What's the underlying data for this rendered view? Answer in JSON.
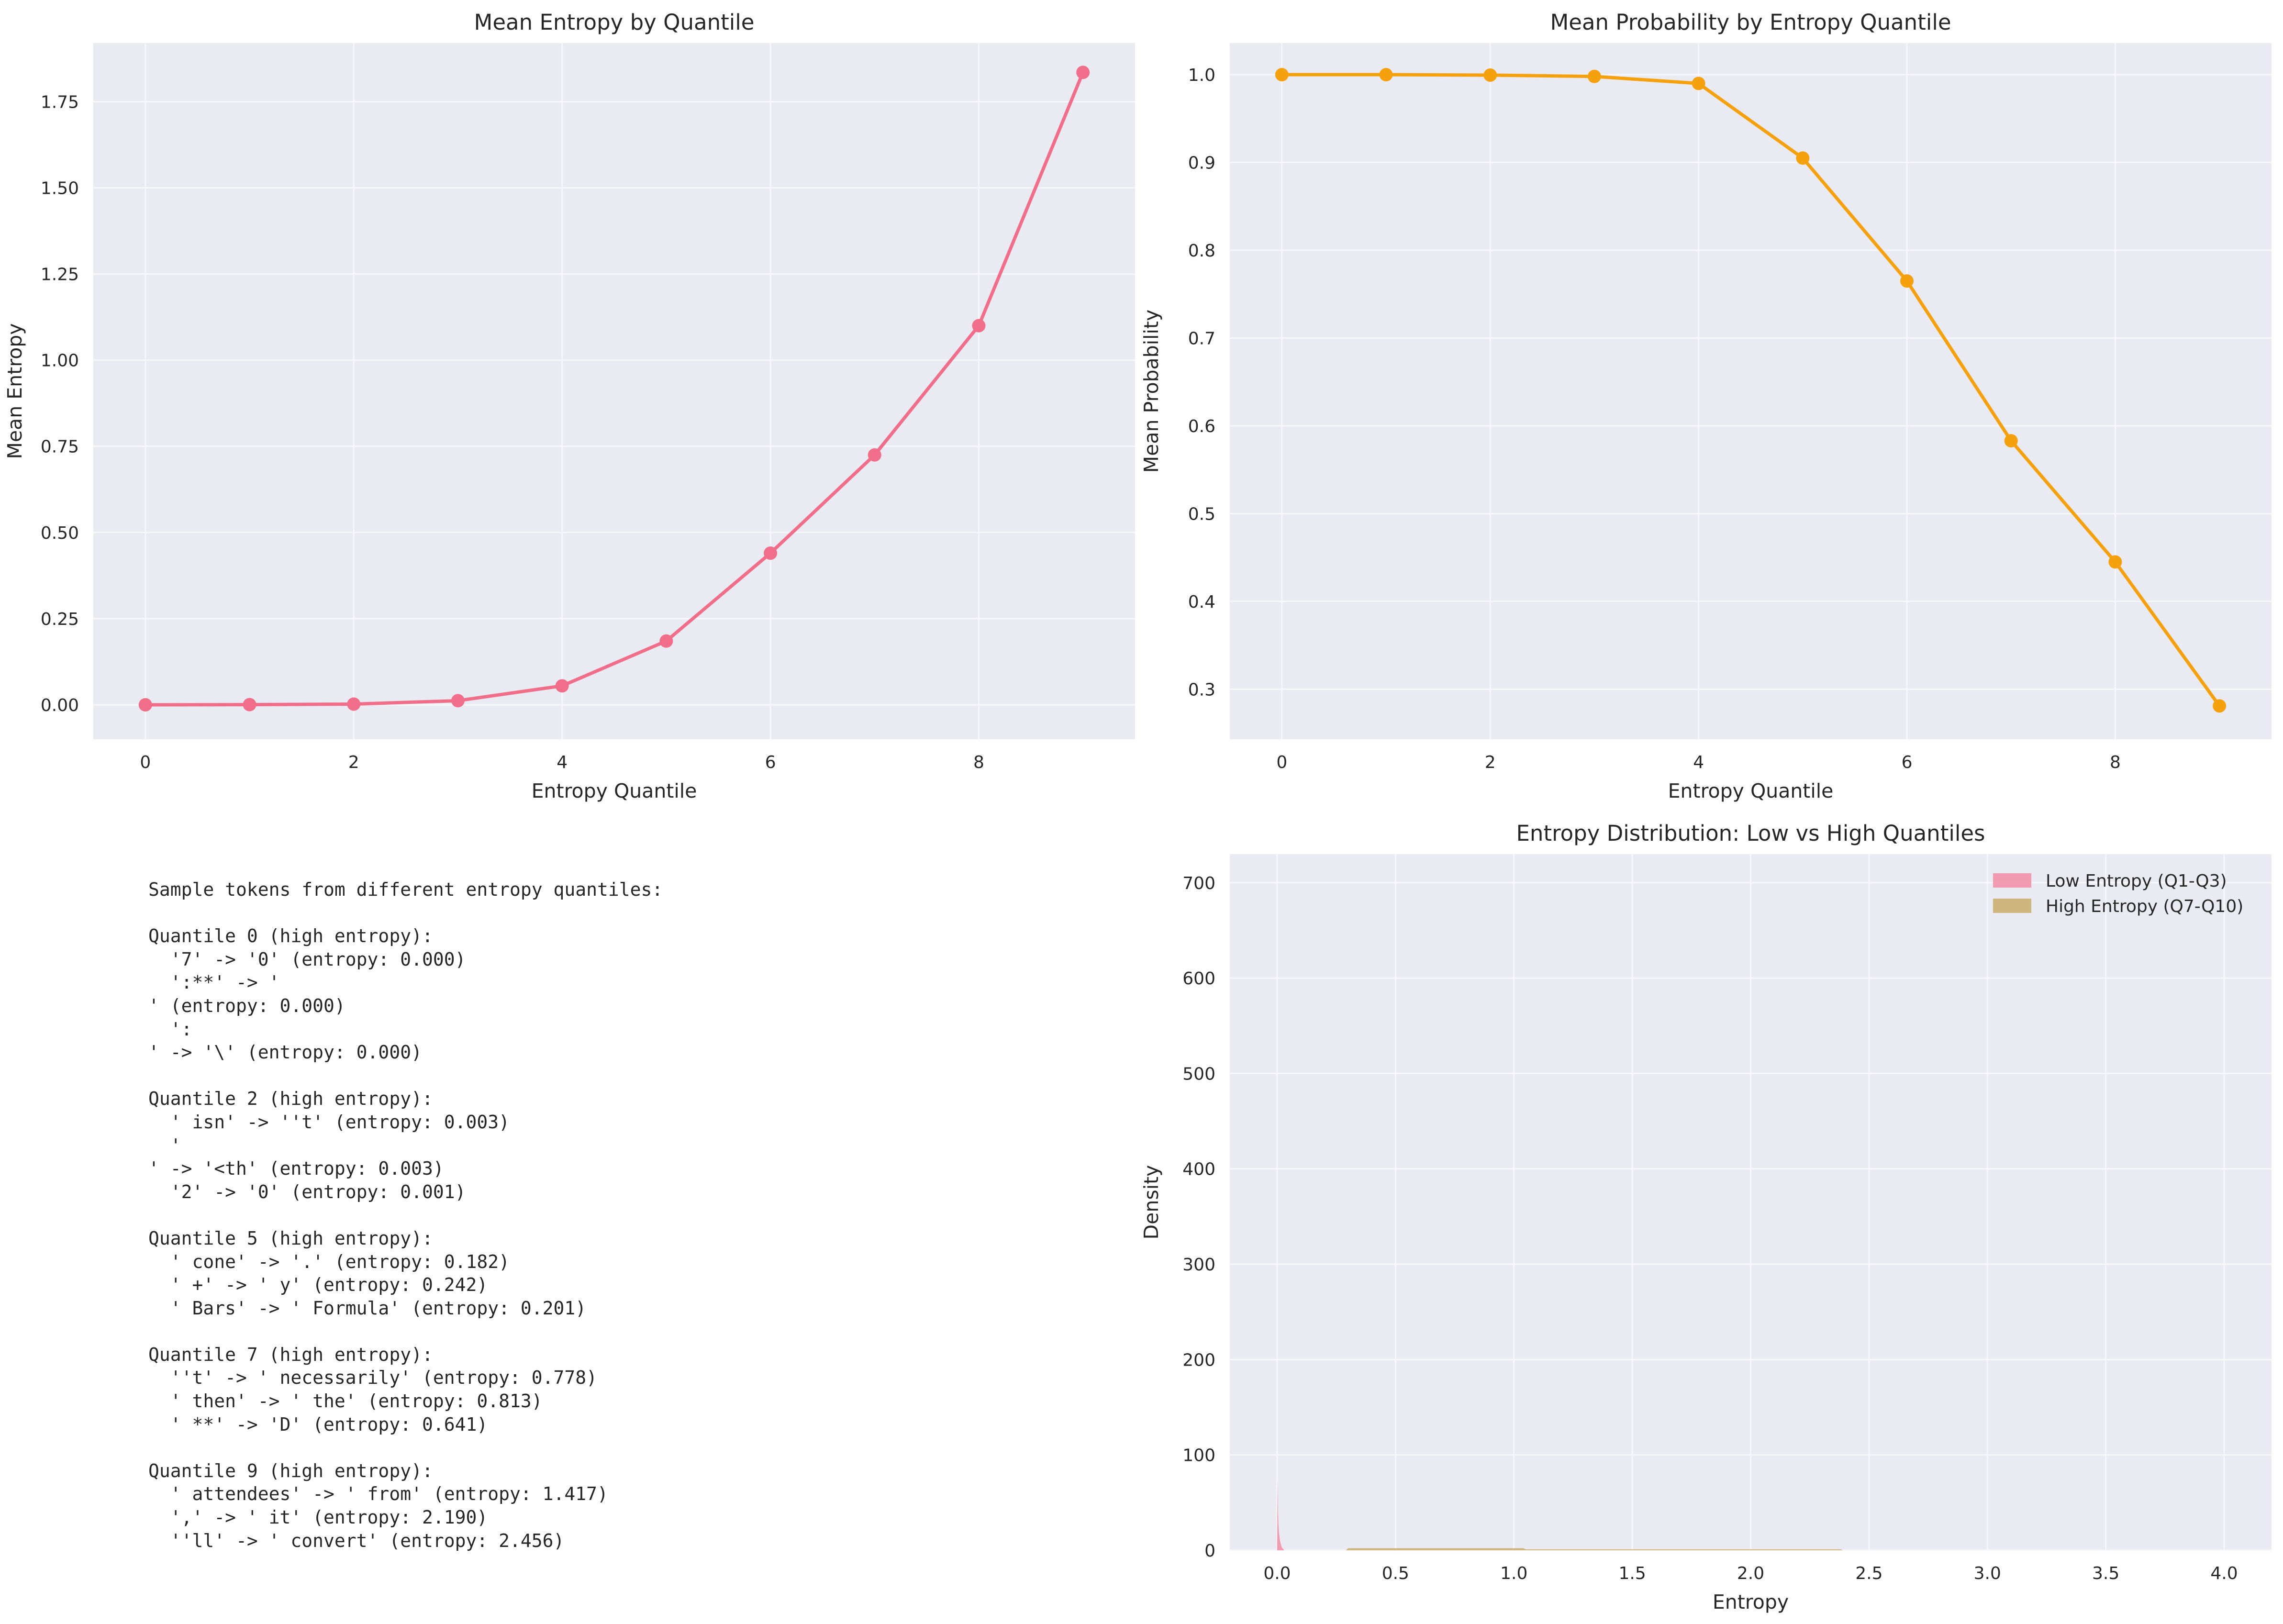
{
  "chart_data": [
    {
      "type": "line",
      "title": "Mean Entropy by Quantile",
      "xlabel": "Entropy Quantile",
      "ylabel": "Mean Entropy",
      "x": [
        0,
        1,
        2,
        3,
        4,
        5,
        6,
        7,
        8,
        9
      ],
      "series": [
        {
          "values": [
            0.0,
            0.0005,
            0.002,
            0.012,
            0.055,
            0.185,
            0.44,
            0.725,
            1.1,
            1.835
          ],
          "color": "#f06e8a"
        }
      ],
      "xlim": [
        -0.5,
        9.5
      ],
      "ylim": [
        -0.1,
        1.92
      ],
      "xticks": [
        0,
        2,
        4,
        6,
        8
      ],
      "yticks": [
        0.0,
        0.25,
        0.5,
        0.75,
        1.0,
        1.25,
        1.5,
        1.75
      ],
      "xtick_labels": [
        "0",
        "2",
        "4",
        "6",
        "8"
      ],
      "ytick_labels": [
        "0.00",
        "0.25",
        "0.50",
        "0.75",
        "1.00",
        "1.25",
        "1.50",
        "1.75"
      ],
      "grid": true,
      "markers": true
    },
    {
      "type": "line",
      "title": "Mean Probability by Entropy Quantile",
      "xlabel": "Entropy Quantile",
      "ylabel": "Mean Probability",
      "x": [
        0,
        1,
        2,
        3,
        4,
        5,
        6,
        7,
        8,
        9
      ],
      "series": [
        {
          "values": [
            1.0,
            1.0,
            0.9995,
            0.998,
            0.99,
            0.905,
            0.765,
            0.583,
            0.445,
            0.281
          ],
          "color": "#f5a10e"
        }
      ],
      "xlim": [
        -0.5,
        9.5
      ],
      "ylim": [
        0.243,
        1.036
      ],
      "xticks": [
        0,
        2,
        4,
        6,
        8
      ],
      "yticks": [
        0.3,
        0.4,
        0.5,
        0.6,
        0.7,
        0.8,
        0.9,
        1.0
      ],
      "xtick_labels": [
        "0",
        "2",
        "4",
        "6",
        "8"
      ],
      "ytick_labels": [
        "0.3",
        "0.4",
        "0.5",
        "0.6",
        "0.7",
        "0.8",
        "0.9",
        "1.0"
      ],
      "grid": true,
      "markers": true
    },
    {
      "type": "area",
      "title": "Entropy Distribution: Low vs High Quantiles",
      "xlabel": "Entropy",
      "ylabel": "Density",
      "xlim": [
        -0.2,
        4.2
      ],
      "ylim": [
        0,
        730
      ],
      "xticks": [
        0.0,
        0.5,
        1.0,
        1.5,
        2.0,
        2.5,
        3.0,
        3.5,
        4.0
      ],
      "yticks": [
        0,
        100,
        200,
        300,
        400,
        500,
        600,
        700
      ],
      "xtick_labels": [
        "0.0",
        "0.5",
        "1.0",
        "1.5",
        "2.0",
        "2.5",
        "3.0",
        "3.5",
        "4.0"
      ],
      "ytick_labels": [
        "0",
        "100",
        "200",
        "300",
        "400",
        "500",
        "600",
        "700"
      ],
      "grid": true,
      "legend_position": "top-right",
      "series": [
        {
          "name": "Low Entropy (Q1-Q3)",
          "color": "#f38ca3",
          "x": [
            0.0,
            0.002,
            0.004,
            0.006,
            0.008,
            0.012,
            0.016,
            0.02,
            0.03
          ],
          "values": [
            0,
            75,
            38,
            25,
            18,
            10,
            6,
            3,
            0
          ]
        },
        {
          "name": "High Entropy (Q7-Q10)",
          "color": "#c9ad6b",
          "x": [
            0.29,
            0.3,
            1.04,
            1.05,
            2.38,
            2.39
          ],
          "values": [
            0,
            2.2,
            2.2,
            1.0,
            1.0,
            0
          ]
        }
      ]
    }
  ],
  "sample_panel": {
    "lines": [
      "Sample tokens from different entropy quantiles:",
      "",
      "Quantile 0 (high entropy):",
      "  '7' -> '0' (entropy: 0.000)",
      "  ':**' -> '",
      "' (entropy: 0.000)",
      "  ':",
      "' -> '\\' (entropy: 0.000)",
      "",
      "Quantile 2 (high entropy):",
      "  ' isn' -> ''t' (entropy: 0.003)",
      "  '",
      "' -> '<th' (entropy: 0.003)",
      "  '2' -> '0' (entropy: 0.001)",
      "",
      "Quantile 5 (high entropy):",
      "  ' cone' -> '.' (entropy: 0.182)",
      "  ' +' -> ' y' (entropy: 0.242)",
      "  ' Bars' -> ' Formula' (entropy: 0.201)",
      "",
      "Quantile 7 (high entropy):",
      "  ''t' -> ' necessarily' (entropy: 0.778)",
      "  ' then' -> ' the' (entropy: 0.813)",
      "  ' **' -> 'D' (entropy: 0.641)",
      "",
      "Quantile 9 (high entropy):",
      "  ' attendees' -> ' from' (entropy: 1.417)",
      "  ',' -> ' it' (entropy: 2.190)",
      "  ''ll' -> ' convert' (entropy: 2.456)"
    ]
  }
}
